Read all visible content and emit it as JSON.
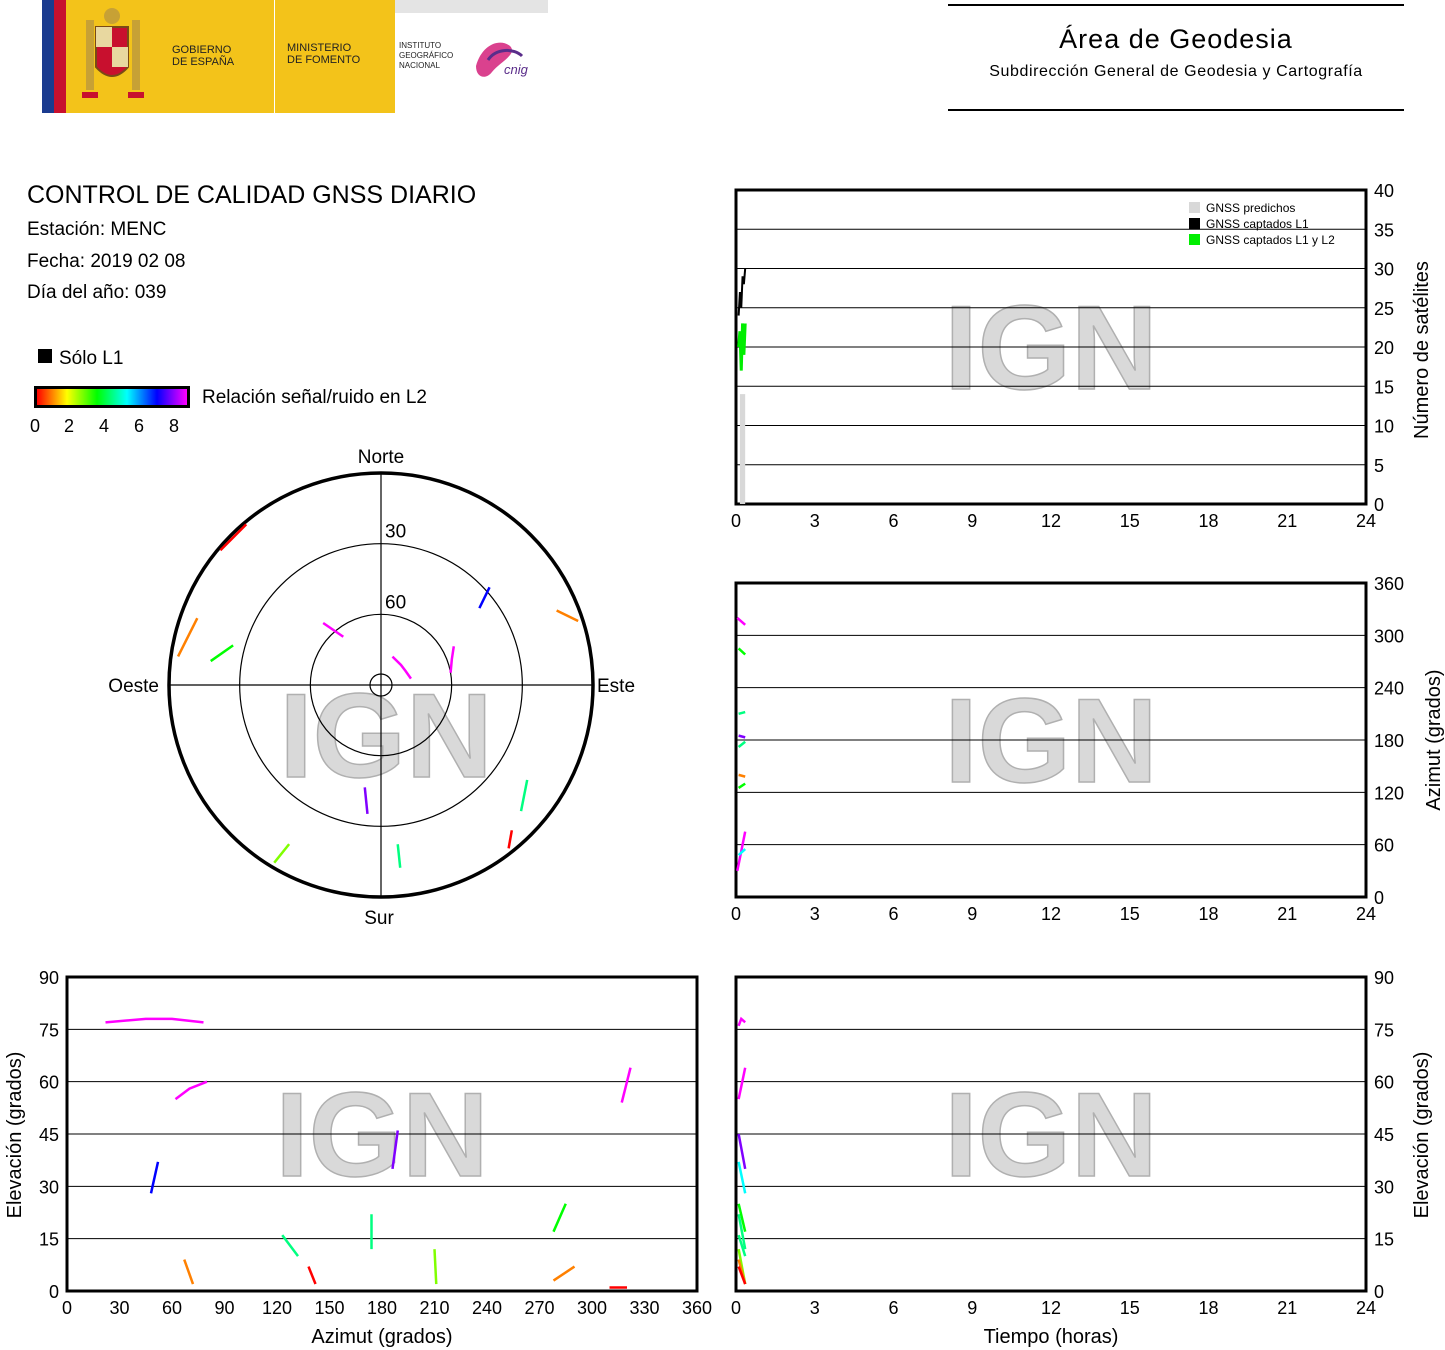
{
  "header": {
    "gov_line1": "GOBIERNO",
    "gov_line2": "DE ESPAÑA",
    "min_line1": "MINISTERIO",
    "min_line2": "DE FOMENTO",
    "inst_line1": "INSTITUTO",
    "inst_line2": "GEOGRÁFICO",
    "inst_line3": "NACIONAL",
    "cnig": "cnig",
    "area_title": "Área de Geodesia",
    "area_subtitle": "Subdirección General de Geodesia y Cartografía"
  },
  "report": {
    "title": "CONTROL DE CALIDAD GNSS DIARIO",
    "station": "Estación: MENC",
    "date": "Fecha: 2019 02 08",
    "doy": "Día del año: 039"
  },
  "legend": {
    "solo_l1": "Sólo L1",
    "snr_label": "Relación señal/ruido en L2",
    "ticks": [
      "0",
      "2",
      "4",
      "6",
      "8"
    ]
  },
  "watermark": "IGN",
  "colors": {
    "predicted": "#d8d8d8",
    "l1": "#000000",
    "l1l2": "#00ee00",
    "snr_scale": [
      "#ff0000",
      "#ff8000",
      "#ffff00",
      "#80ff00",
      "#00ff00",
      "#00ff80",
      "#00ffff",
      "#0080ff",
      "#0000ff",
      "#8000ff",
      "#ff00ff"
    ]
  },
  "chart_data": [
    {
      "type": "line",
      "name": "satellites_vs_time",
      "xlim": [
        0,
        24
      ],
      "xticks": [
        "0",
        "3",
        "6",
        "9",
        "12",
        "15",
        "18",
        "21",
        "24"
      ],
      "ylim": [
        0,
        40
      ],
      "yticks": [
        "0",
        "5",
        "10",
        "15",
        "20",
        "25",
        "30",
        "35",
        "40"
      ],
      "ylabel": "Número de satélites",
      "legend_position": "top-right",
      "legend": [
        "GNSS predichos",
        "GNSS captados L1",
        "GNSS captados L1 y L2"
      ],
      "series": [
        {
          "name": "GNSS predichos",
          "x": [
            0.15,
            0.35
          ],
          "values": [
            14,
            14
          ]
        },
        {
          "name": "GNSS captados L1",
          "x": [
            0.1,
            0.15,
            0.2,
            0.25,
            0.3,
            0.35
          ],
          "values": [
            24,
            27,
            25,
            29,
            28,
            30
          ]
        },
        {
          "name": "GNSS captados L1 y L2",
          "x": [
            0.1,
            0.15,
            0.2,
            0.25,
            0.3,
            0.35
          ],
          "values": [
            20,
            22,
            17,
            23,
            19,
            23
          ]
        }
      ]
    },
    {
      "type": "scatter",
      "name": "azimuth_vs_time",
      "xlim": [
        0,
        24
      ],
      "xticks": [
        "0",
        "3",
        "6",
        "9",
        "12",
        "15",
        "18",
        "21",
        "24"
      ],
      "ylim": [
        0,
        360
      ],
      "yticks": [
        "0",
        "60",
        "120",
        "180",
        "240",
        "300",
        "360"
      ],
      "ylabel": "Azimut (grados)",
      "tracks": [
        {
          "t": [
            0.05,
            0.35
          ],
          "v": [
            320,
            312
          ],
          "snr": 9
        },
        {
          "t": [
            0.1,
            0.35
          ],
          "v": [
            285,
            278
          ],
          "snr": 3
        },
        {
          "t": [
            0.1,
            0.35
          ],
          "v": [
            210,
            212
          ],
          "snr": 4
        },
        {
          "t": [
            0.1,
            0.35
          ],
          "v": [
            185,
            183
          ],
          "snr": 7
        },
        {
          "t": [
            0.1,
            0.35
          ],
          "v": [
            172,
            178
          ],
          "snr": 4
        },
        {
          "t": [
            0.1,
            0.35
          ],
          "v": [
            140,
            138
          ],
          "snr": 1
        },
        {
          "t": [
            0.1,
            0.35
          ],
          "v": [
            125,
            130
          ],
          "snr": 3
        },
        {
          "t": [
            0.05,
            0.35
          ],
          "v": [
            30,
            75
          ],
          "snr": 9
        },
        {
          "t": [
            0.1,
            0.35
          ],
          "v": [
            48,
            55
          ],
          "snr": 5
        }
      ]
    },
    {
      "type": "scatter",
      "name": "elevation_vs_azimuth",
      "xlim": [
        0,
        360
      ],
      "xticks": [
        "0",
        "30",
        "60",
        "90",
        "120",
        "150",
        "180",
        "210",
        "240",
        "270",
        "300",
        "330",
        "360"
      ],
      "xlabel": "Azimut (grados)",
      "ylim": [
        0,
        90
      ],
      "yticks": [
        "0",
        "15",
        "30",
        "45",
        "60",
        "75",
        "90"
      ],
      "ylabel": "Elevación (grados)",
      "tracks": [
        {
          "az": [
            22,
            45,
            60,
            78
          ],
          "el": [
            77,
            78,
            78,
            77
          ],
          "snr": 9
        },
        {
          "az": [
            62,
            70,
            80
          ],
          "el": [
            55,
            58,
            60
          ],
          "snr": 9
        },
        {
          "az": [
            48,
            52
          ],
          "el": [
            28,
            37
          ],
          "snr": 6
        },
        {
          "az": [
            67,
            72
          ],
          "el": [
            9,
            2
          ],
          "snr": 1
        },
        {
          "az": [
            123,
            132
          ],
          "el": [
            16,
            10
          ],
          "snr": 4
        },
        {
          "az": [
            138,
            142
          ],
          "el": [
            7,
            2
          ],
          "snr": 0
        },
        {
          "az": [
            174,
            174
          ],
          "el": [
            22,
            12
          ],
          "snr": 4
        },
        {
          "az": [
            186,
            189
          ],
          "el": [
            35,
            46
          ],
          "snr": 7
        },
        {
          "az": [
            210,
            211
          ],
          "el": [
            12,
            2
          ],
          "snr": 2
        },
        {
          "az": [
            278,
            285
          ],
          "el": [
            17,
            25
          ],
          "snr": 3
        },
        {
          "az": [
            278,
            290
          ],
          "el": [
            3,
            7
          ],
          "snr": 1
        },
        {
          "az": [
            310,
            320
          ],
          "el": [
            1,
            1
          ],
          "snr": 0
        },
        {
          "az": [
            317,
            322
          ],
          "el": [
            54,
            64
          ],
          "snr": 9
        }
      ]
    },
    {
      "type": "scatter",
      "name": "elevation_vs_time",
      "xlim": [
        0,
        24
      ],
      "xticks": [
        "0",
        "3",
        "6",
        "9",
        "12",
        "15",
        "18",
        "21",
        "24"
      ],
      "xlabel": "Tiempo (horas)",
      "ylim": [
        0,
        90
      ],
      "yticks": [
        "0",
        "15",
        "30",
        "45",
        "60",
        "75",
        "90"
      ],
      "ylabel": "Elevación (grados)",
      "tracks": [
        {
          "t": [
            0.1,
            0.2,
            0.35
          ],
          "v": [
            76,
            78,
            77
          ],
          "snr": 9
        },
        {
          "t": [
            0.1,
            0.35
          ],
          "v": [
            55,
            64
          ],
          "snr": 9
        },
        {
          "t": [
            0.1,
            0.35
          ],
          "v": [
            45,
            35
          ],
          "snr": 7
        },
        {
          "t": [
            0.1,
            0.35
          ],
          "v": [
            37,
            28
          ],
          "snr": 5
        },
        {
          "t": [
            0.1,
            0.35
          ],
          "v": [
            25,
            17
          ],
          "snr": 3
        },
        {
          "t": [
            0.1,
            0.35
          ],
          "v": [
            22,
            12
          ],
          "snr": 4
        },
        {
          "t": [
            0.1,
            0.35
          ],
          "v": [
            16,
            10
          ],
          "snr": 4
        },
        {
          "t": [
            0.1,
            0.35
          ],
          "v": [
            12,
            2
          ],
          "snr": 2
        },
        {
          "t": [
            0.1,
            0.35
          ],
          "v": [
            9,
            2
          ],
          "snr": 1
        },
        {
          "t": [
            0.1,
            0.35
          ],
          "v": [
            7,
            2
          ],
          "snr": 0
        }
      ]
    },
    {
      "type": "scatter",
      "name": "skyplot",
      "labels": {
        "north": "Norte",
        "south": "Sur",
        "east": "Este",
        "west": "Oeste"
      },
      "ring_labels": [
        "30",
        "60"
      ],
      "tracks": [
        {
          "az": [
            22,
            45,
            60,
            78
          ],
          "el": [
            77,
            78,
            78,
            77
          ],
          "snr": 9
        },
        {
          "az": [
            62,
            70,
            80
          ],
          "el": [
            55,
            58,
            60
          ],
          "snr": 9
        },
        {
          "az": [
            48,
            52
          ],
          "el": [
            28,
            37
          ],
          "snr": 6
        },
        {
          "az": [
            67,
            72
          ],
          "el": [
            9,
            2
          ],
          "snr": 1
        },
        {
          "az": [
            123,
            132
          ],
          "el": [
            16,
            10
          ],
          "snr": 4
        },
        {
          "az": [
            138,
            142
          ],
          "el": [
            7,
            2
          ],
          "snr": 0
        },
        {
          "az": [
            174,
            174
          ],
          "el": [
            22,
            12
          ],
          "snr": 4
        },
        {
          "az": [
            186,
            189
          ],
          "el": [
            35,
            46
          ],
          "snr": 7
        },
        {
          "az": [
            210,
            211
          ],
          "el": [
            12,
            2
          ],
          "snr": 2
        },
        {
          "az": [
            278,
            285
          ],
          "el": [
            17,
            25
          ],
          "snr": 3
        },
        {
          "az": [
            278,
            290
          ],
          "el": [
            3,
            7
          ],
          "snr": 1
        },
        {
          "az": [
            310,
            320
          ],
          "el": [
            1,
            1
          ],
          "snr": 0
        },
        {
          "az": [
            317,
            322
          ],
          "el": [
            54,
            64
          ],
          "snr": 9
        }
      ]
    }
  ]
}
